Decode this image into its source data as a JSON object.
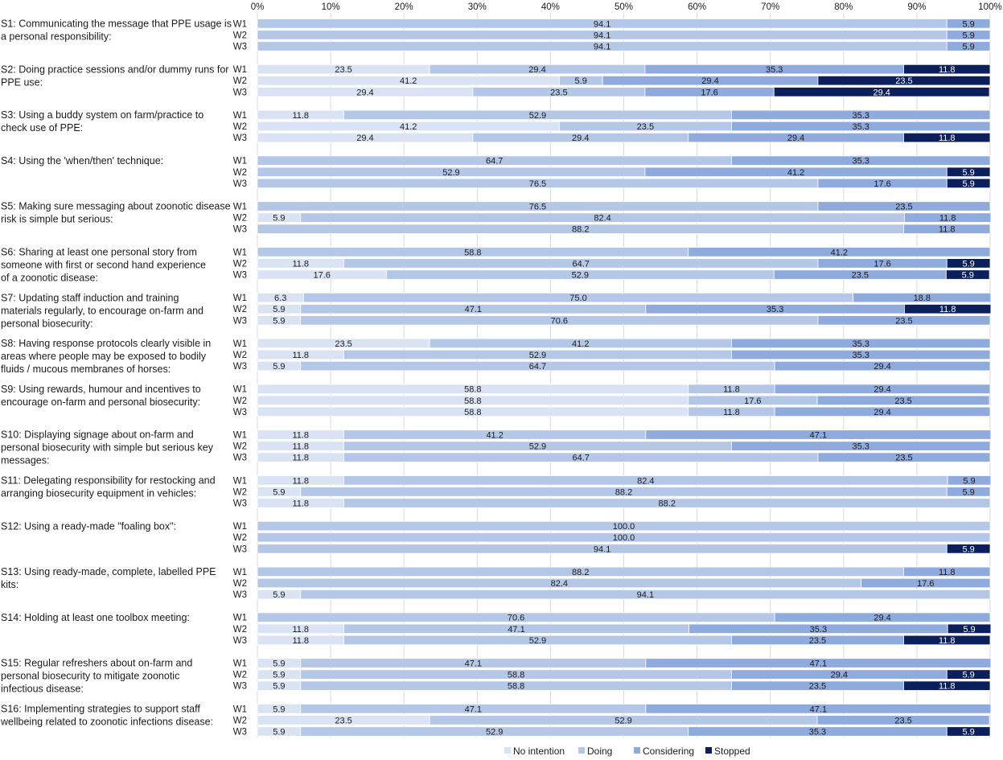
{
  "chart_data": {
    "type": "bar",
    "orientation": "horizontal",
    "stacked": true,
    "xlim": [
      0,
      100
    ],
    "tick_labels": [
      "0%",
      "10%",
      "20%",
      "30%",
      "40%",
      "50%",
      "60%",
      "70%",
      "80%",
      "90%",
      "100%"
    ],
    "grid": true,
    "legend_position": "bottom-right",
    "series": [
      {
        "name": "No intention",
        "color": "#dae3f3"
      },
      {
        "name": "Doing",
        "color": "#b4c7e7"
      },
      {
        "name": "Considering",
        "color": "#8faadc"
      },
      {
        "name": "Stopped",
        "color": "#0b1f5c"
      }
    ],
    "categories": [
      {
        "label_lines": [
          "S1: Communicating the message that PPE usage is",
          "a personal responsibility:"
        ],
        "waves": [
          {
            "wave": "W1",
            "values": [
              0,
              94.1,
              5.9,
              0
            ]
          },
          {
            "wave": "W2",
            "values": [
              0,
              94.1,
              5.9,
              0
            ]
          },
          {
            "wave": "W3",
            "values": [
              0,
              94.1,
              5.9,
              0
            ]
          }
        ]
      },
      {
        "label_lines": [
          "S2: Doing practice sessions and/or dummy runs for",
          "PPE use:"
        ],
        "waves": [
          {
            "wave": "W1",
            "values": [
              23.5,
              29.4,
              35.3,
              11.8
            ]
          },
          {
            "wave": "W2",
            "values": [
              41.2,
              5.9,
              29.4,
              23.5
            ]
          },
          {
            "wave": "W3",
            "values": [
              29.4,
              23.5,
              17.6,
              29.4
            ]
          }
        ]
      },
      {
        "label_lines": [
          "S3: Using a buddy system on farm/practice to",
          "check use of PPE:"
        ],
        "waves": [
          {
            "wave": "W1",
            "values": [
              11.8,
              52.9,
              35.3,
              0
            ]
          },
          {
            "wave": "W2",
            "values": [
              41.2,
              23.5,
              35.3,
              0
            ]
          },
          {
            "wave": "W3",
            "values": [
              29.4,
              29.4,
              29.4,
              11.8
            ]
          }
        ]
      },
      {
        "label_lines": [
          "S4: Using the 'when/then' technique:"
        ],
        "waves": [
          {
            "wave": "W1",
            "values": [
              0,
              64.7,
              35.3,
              0
            ]
          },
          {
            "wave": "W2",
            "values": [
              0,
              52.9,
              41.2,
              5.9
            ]
          },
          {
            "wave": "W3",
            "values": [
              0,
              76.5,
              17.6,
              5.9
            ]
          }
        ]
      },
      {
        "label_lines": [
          "S5: Making sure messaging about zoonotic disease",
          "risk is simple but serious:"
        ],
        "waves": [
          {
            "wave": "W1",
            "values": [
              0,
              76.5,
              23.5,
              0
            ]
          },
          {
            "wave": "W2",
            "values": [
              5.9,
              82.4,
              11.8,
              0
            ]
          },
          {
            "wave": "W3",
            "values": [
              0,
              88.2,
              11.8,
              0
            ]
          }
        ]
      },
      {
        "label_lines": [
          "S6: Sharing at least one personal story from",
          "someone with first or second hand experience",
          "of a zoonotic disease:"
        ],
        "waves": [
          {
            "wave": "W1",
            "values": [
              0,
              58.8,
              41.2,
              0
            ]
          },
          {
            "wave": "W2",
            "values": [
              11.8,
              64.7,
              17.6,
              5.9
            ]
          },
          {
            "wave": "W3",
            "values": [
              17.6,
              52.9,
              23.5,
              5.9
            ]
          }
        ]
      },
      {
        "label_lines": [
          "S7: Updating staff induction and training",
          "materials regularly, to encourage on-farm and",
          "personal biosecurity:"
        ],
        "waves": [
          {
            "wave": "W1",
            "values": [
              6.3,
              75.0,
              18.8,
              0
            ]
          },
          {
            "wave": "W2",
            "values": [
              5.9,
              47.1,
              35.3,
              11.8
            ]
          },
          {
            "wave": "W3",
            "values": [
              5.9,
              70.6,
              23.5,
              0
            ]
          }
        ]
      },
      {
        "label_lines": [
          "S8: Having response protocols clearly visible in",
          "areas where people may be exposed to bodily",
          "fluids / mucous membranes of horses:"
        ],
        "waves": [
          {
            "wave": "W1",
            "values": [
              23.5,
              41.2,
              35.3,
              0
            ]
          },
          {
            "wave": "W2",
            "values": [
              11.8,
              52.9,
              35.3,
              0
            ]
          },
          {
            "wave": "W3",
            "values": [
              5.9,
              64.7,
              29.4,
              0
            ]
          }
        ]
      },
      {
        "label_lines": [
          "S9: Using rewards, humour and incentives to",
          "encourage on-farm and personal biosecurity:"
        ],
        "waves": [
          {
            "wave": "W1",
            "values": [
              58.8,
              11.8,
              29.4,
              0
            ]
          },
          {
            "wave": "W2",
            "values": [
              58.8,
              17.6,
              23.5,
              0
            ]
          },
          {
            "wave": "W3",
            "values": [
              58.8,
              11.8,
              29.4,
              0
            ]
          }
        ]
      },
      {
        "label_lines": [
          "S10: Displaying signage about on-farm and",
          "personal biosecurity with simple but serious key",
          "messages:"
        ],
        "waves": [
          {
            "wave": "W1",
            "values": [
              11.8,
              41.2,
              47.1,
              0
            ]
          },
          {
            "wave": "W2",
            "values": [
              11.8,
              52.9,
              35.3,
              0
            ]
          },
          {
            "wave": "W3",
            "values": [
              11.8,
              64.7,
              23.5,
              0
            ]
          }
        ]
      },
      {
        "label_lines": [
          "S11: Delegating responsibility for restocking and",
          "arranging biosecurity equipment in vehicles:"
        ],
        "waves": [
          {
            "wave": "W1",
            "values": [
              11.8,
              82.4,
              5.9,
              0
            ]
          },
          {
            "wave": "W2",
            "values": [
              5.9,
              88.2,
              5.9,
              0
            ]
          },
          {
            "wave": "W3",
            "values": [
              11.8,
              88.2,
              0,
              0
            ]
          }
        ]
      },
      {
        "label_lines": [
          "S12: Using a ready-made \"foaling box\":"
        ],
        "waves": [
          {
            "wave": "W1",
            "values": [
              0,
              100.0,
              0,
              0
            ]
          },
          {
            "wave": "W2",
            "values": [
              0,
              100.0,
              0,
              0
            ]
          },
          {
            "wave": "W3",
            "values": [
              0,
              94.1,
              0,
              5.9
            ]
          }
        ]
      },
      {
        "label_lines": [
          "S13: Using ready-made, complete, labelled PPE",
          "kits:"
        ],
        "waves": [
          {
            "wave": "W1",
            "values": [
              0,
              88.2,
              11.8,
              0
            ]
          },
          {
            "wave": "W2",
            "values": [
              0,
              82.4,
              17.6,
              0
            ]
          },
          {
            "wave": "W3",
            "values": [
              5.9,
              94.1,
              0,
              0
            ]
          }
        ]
      },
      {
        "label_lines": [
          "S14: Holding at least one toolbox meeting:"
        ],
        "waves": [
          {
            "wave": "W1",
            "values": [
              0,
              70.6,
              29.4,
              0
            ]
          },
          {
            "wave": "W2",
            "values": [
              11.8,
              47.1,
              35.3,
              5.9
            ]
          },
          {
            "wave": "W3",
            "values": [
              11.8,
              52.9,
              23.5,
              11.8
            ]
          }
        ]
      },
      {
        "label_lines": [
          "S15: Regular refreshers about on-farm and",
          "personal biosecurity to mitigate zoonotic",
          "infectious disease:"
        ],
        "waves": [
          {
            "wave": "W1",
            "values": [
              5.9,
              47.1,
              47.1,
              0
            ]
          },
          {
            "wave": "W2",
            "values": [
              5.9,
              58.8,
              29.4,
              5.9
            ]
          },
          {
            "wave": "W3",
            "values": [
              5.9,
              58.8,
              23.5,
              11.8
            ]
          }
        ]
      },
      {
        "label_lines": [
          "S16: Implementing strategies to support staff",
          "wellbeing related to zoonotic infections disease:"
        ],
        "waves": [
          {
            "wave": "W1",
            "values": [
              5.9,
              47.1,
              47.1,
              0
            ]
          },
          {
            "wave": "W2",
            "values": [
              23.5,
              52.9,
              23.5,
              0
            ]
          },
          {
            "wave": "W3",
            "values": [
              5.9,
              52.9,
              35.3,
              5.9
            ]
          }
        ]
      }
    ]
  }
}
